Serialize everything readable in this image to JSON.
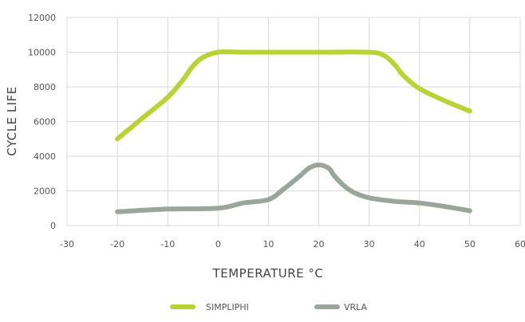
{
  "chart_data": {
    "type": "line",
    "title": "",
    "xlabel": "TEMPERATURE °C",
    "ylabel": "CYCLE LIFE",
    "xlim": [
      -30,
      60
    ],
    "ylim": [
      0,
      12000
    ],
    "x_ticks": [
      -30,
      -20,
      -10,
      0,
      10,
      20,
      30,
      40,
      50,
      60
    ],
    "y_ticks": [
      0,
      2000,
      4000,
      6000,
      8000,
      10000,
      12000
    ],
    "x_tick_labels": [
      "-30",
      "-20",
      "-10",
      "0",
      "10",
      "20",
      "30",
      "40",
      "50",
      "60"
    ],
    "y_tick_labels": [
      "0",
      "2000",
      "4000",
      "6000",
      "8000",
      "10000",
      "12000"
    ],
    "grid": true,
    "legend_position": "bottom",
    "series": [
      {
        "name": "SIMPLIPHI",
        "color": "#b8d433",
        "x": [
          -20,
          -15,
          -10,
          -7,
          -5,
          -3,
          0,
          5,
          10,
          20,
          30,
          33,
          35,
          37,
          40,
          45,
          50
        ],
        "y": [
          5000,
          6200,
          7400,
          8400,
          9200,
          9700,
          10000,
          10000,
          10000,
          10000,
          10000,
          9800,
          9300,
          8600,
          7900,
          7200,
          6600
        ]
      },
      {
        "name": "VRLA",
        "color": "#9aa59b",
        "x": [
          -20,
          -10,
          0,
          5,
          10,
          13,
          16,
          18,
          20,
          22,
          23,
          25,
          27,
          30,
          35,
          40,
          45,
          50
        ],
        "y": [
          800,
          950,
          1000,
          1300,
          1500,
          2100,
          2800,
          3300,
          3500,
          3300,
          2900,
          2300,
          1900,
          1600,
          1400,
          1300,
          1100,
          850
        ]
      }
    ]
  }
}
